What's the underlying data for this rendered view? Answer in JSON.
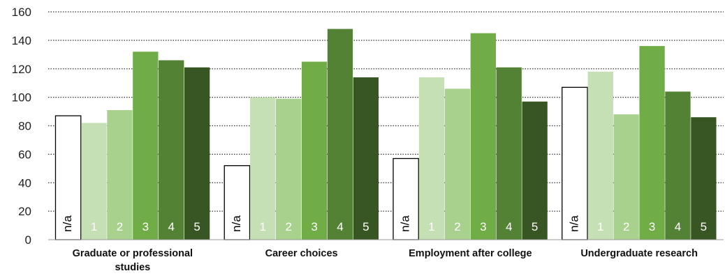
{
  "chart_data": {
    "type": "bar",
    "title": "",
    "xlabel": "",
    "ylabel": "",
    "ylim": [
      0,
      160
    ],
    "yticks": [
      0,
      20,
      40,
      60,
      80,
      100,
      120,
      140,
      160
    ],
    "grid": true,
    "categories": [
      [
        "Graduate or professional",
        "studies"
      ],
      [
        "Career choices"
      ],
      [
        "Employment after college"
      ],
      [
        "Undergraduate research"
      ]
    ],
    "series": [
      {
        "label": "n/a",
        "color": "#ffffff",
        "values": [
          87,
          52,
          57,
          107
        ]
      },
      {
        "label": "1",
        "color": "#c5e0b4",
        "values": [
          82,
          100,
          114,
          118
        ]
      },
      {
        "label": "2",
        "color": "#a9d18e",
        "values": [
          91,
          99,
          106,
          88
        ]
      },
      {
        "label": "3",
        "color": "#70ad47",
        "values": [
          132,
          125,
          145,
          136
        ]
      },
      {
        "label": "4",
        "color": "#548235",
        "values": [
          126,
          148,
          121,
          104
        ]
      },
      {
        "label": "5",
        "color": "#375623",
        "values": [
          121,
          114,
          97,
          86
        ]
      }
    ]
  }
}
